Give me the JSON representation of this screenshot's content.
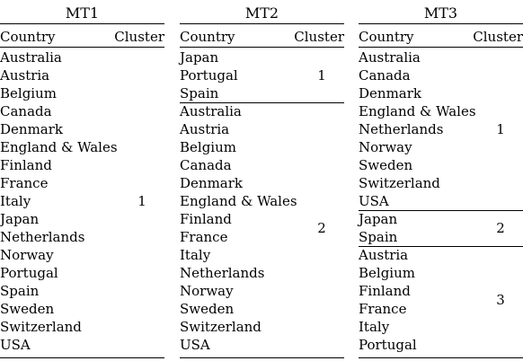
{
  "panels": [
    {
      "title": "MT1",
      "header": {
        "country": "Country",
        "cluster": "Cluster"
      },
      "groups": [
        {
          "cluster": "1",
          "countries": [
            "Australia",
            "Austria",
            "Belgium",
            "Canada",
            "Denmark",
            "England & Wales",
            "Finland",
            "France",
            "Italy",
            "Japan",
            "Netherlands",
            "Norway",
            "Portugal",
            "Spain",
            "Sweden",
            "Switzerland",
            "USA"
          ]
        }
      ]
    },
    {
      "title": "MT2",
      "header": {
        "country": "Country",
        "cluster": "Cluster"
      },
      "groups": [
        {
          "cluster": "1",
          "countries": [
            "Japan",
            "Portugal",
            "Spain"
          ]
        },
        {
          "cluster": "2",
          "countries": [
            "Australia",
            "Austria",
            "Belgium",
            "Canada",
            "Denmark",
            "England & Wales",
            "Finland",
            "France",
            "Italy",
            "Netherlands",
            "Norway",
            "Sweden",
            "Switzerland",
            "USA"
          ]
        }
      ]
    },
    {
      "title": "MT3",
      "header": {
        "country": "Country",
        "cluster": "Cluster"
      },
      "groups": [
        {
          "cluster": "1",
          "countries": [
            "Australia",
            "Canada",
            "Denmark",
            "England & Wales",
            "Netherlands",
            "Norway",
            "Sweden",
            "Switzerland",
            "USA"
          ]
        },
        {
          "cluster": "2",
          "countries": [
            "Japan",
            "Spain"
          ]
        },
        {
          "cluster": "3",
          "countries": [
            "Austria",
            "Belgium",
            "Finland",
            "France",
            "Italy",
            "Portugal"
          ]
        }
      ]
    }
  ]
}
